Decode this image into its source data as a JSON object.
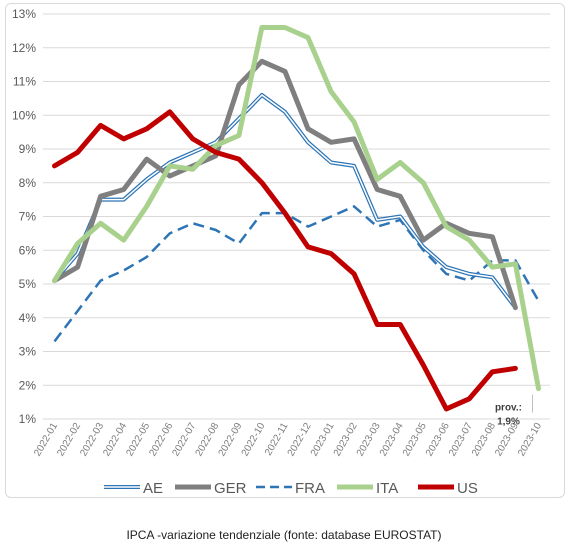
{
  "caption": "IPCA -variazione tendenziale (fonte: database EUROSTAT)",
  "chart_data": {
    "type": "line",
    "title": "",
    "xlabel": "",
    "ylabel": "",
    "x": [
      "2022-01",
      "2022-02",
      "2022-03",
      "2022-04",
      "2022-05",
      "2022-06",
      "2022-07",
      "2022-08",
      "2022-09",
      "2022-10",
      "2022-11",
      "2022-12",
      "2023-01",
      "2023-02",
      "2023-03",
      "2023-04",
      "2023-05",
      "2023-06",
      "2023-07",
      "2023-08",
      "2023-09",
      "2023-10"
    ],
    "ylim": [
      1,
      13
    ],
    "yticks": [
      "1%",
      "2%",
      "3%",
      "4%",
      "5%",
      "6%",
      "7%",
      "8%",
      "9%",
      "10%",
      "11%",
      "12%",
      "13%"
    ],
    "grid": "horizontal",
    "legend_position": "bottom",
    "series": [
      {
        "name": "AE",
        "color": "#2e75b6",
        "style": "double",
        "values": [
          5.1,
          5.9,
          7.5,
          7.5,
          8.1,
          8.6,
          8.9,
          9.2,
          9.9,
          10.6,
          10.1,
          9.2,
          8.6,
          8.5,
          6.9,
          7.0,
          6.1,
          5.5,
          5.3,
          5.2,
          4.3,
          null
        ]
      },
      {
        "name": "GER",
        "color": "#7f7f7f",
        "style": "solid-thick",
        "values": [
          5.1,
          5.5,
          7.6,
          7.8,
          8.7,
          8.2,
          8.5,
          8.8,
          10.9,
          11.6,
          11.3,
          9.6,
          9.2,
          9.3,
          7.8,
          7.6,
          6.3,
          6.8,
          6.5,
          6.4,
          4.3,
          null
        ]
      },
      {
        "name": "FRA",
        "color": "#2e75b6",
        "style": "dashed",
        "values": [
          3.3,
          4.2,
          5.1,
          5.4,
          5.8,
          6.5,
          6.8,
          6.6,
          6.2,
          7.1,
          7.1,
          6.7,
          7.0,
          7.3,
          6.7,
          6.9,
          6.0,
          5.3,
          5.1,
          5.7,
          5.7,
          4.5
        ]
      },
      {
        "name": "ITA",
        "color": "#a9d18e",
        "style": "solid-thick",
        "values": [
          5.1,
          6.2,
          6.8,
          6.3,
          7.3,
          8.5,
          8.4,
          9.1,
          9.4,
          12.6,
          12.6,
          12.3,
          10.7,
          9.8,
          8.1,
          8.6,
          8.0,
          6.7,
          6.3,
          5.5,
          5.6,
          1.9
        ]
      },
      {
        "name": "US",
        "color": "#c00000",
        "style": "solid-thick",
        "values": [
          8.5,
          8.9,
          9.7,
          9.3,
          9.6,
          10.1,
          9.3,
          8.9,
          8.7,
          8.0,
          7.1,
          6.1,
          5.9,
          5.3,
          3.8,
          3.8,
          2.6,
          1.3,
          1.6,
          2.4,
          2.5,
          null
        ]
      }
    ],
    "annotations": [
      {
        "text": "prov.:",
        "x": "2023-10",
        "series": "ITA"
      },
      {
        "text": "1,9%",
        "x": "2023-10",
        "series": "ITA"
      }
    ]
  }
}
